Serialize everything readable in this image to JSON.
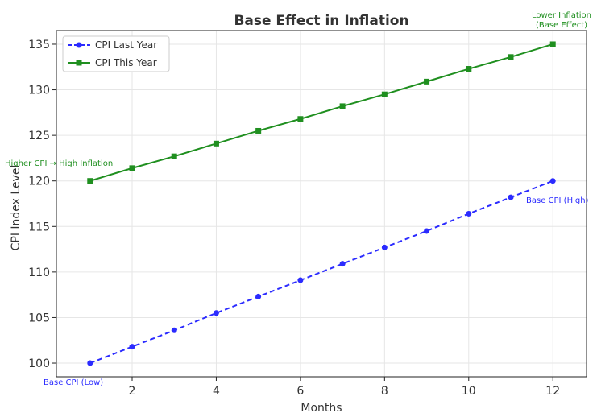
{
  "chart_data": {
    "type": "line",
    "title": "Base Effect in Inflation",
    "xlabel": "Months",
    "ylabel": "CPI Index Level",
    "x": [
      1,
      2,
      3,
      4,
      5,
      6,
      7,
      8,
      9,
      10,
      11,
      12
    ],
    "xticks": [
      "2",
      "4",
      "6",
      "8",
      "10",
      "12"
    ],
    "yticks": [
      "100",
      "105",
      "110",
      "115",
      "120",
      "125",
      "130",
      "135"
    ],
    "xlim": [
      0.2,
      12.8
    ],
    "ylim": [
      98.5,
      136.5
    ],
    "grid": true,
    "legend_position": "top-left",
    "series": [
      {
        "name": "CPI Last Year",
        "style": "dashed",
        "marker": "circle",
        "color": "#2b2bff",
        "values": [
          100,
          101.8,
          103.6,
          105.5,
          107.3,
          109.1,
          110.9,
          112.7,
          114.5,
          116.4,
          118.2,
          120
        ]
      },
      {
        "name": "CPI This Year",
        "style": "solid",
        "marker": "square",
        "color": "#1f8f1f",
        "values": [
          120,
          121.4,
          122.7,
          124.1,
          125.5,
          126.8,
          128.2,
          129.5,
          130.9,
          132.3,
          133.6,
          135
        ]
      }
    ],
    "annotations": [
      {
        "text": "Base CPI (Low)",
        "color": "#2b2bff"
      },
      {
        "text": "Base CPI (High)",
        "color": "#2b2bff"
      },
      {
        "text": "Higher CPI → High Inflation",
        "color": "#1f8f1f"
      },
      {
        "text": "Lower Inflation",
        "text2": "(Base Effect)",
        "color": "#1f8f1f"
      }
    ]
  }
}
